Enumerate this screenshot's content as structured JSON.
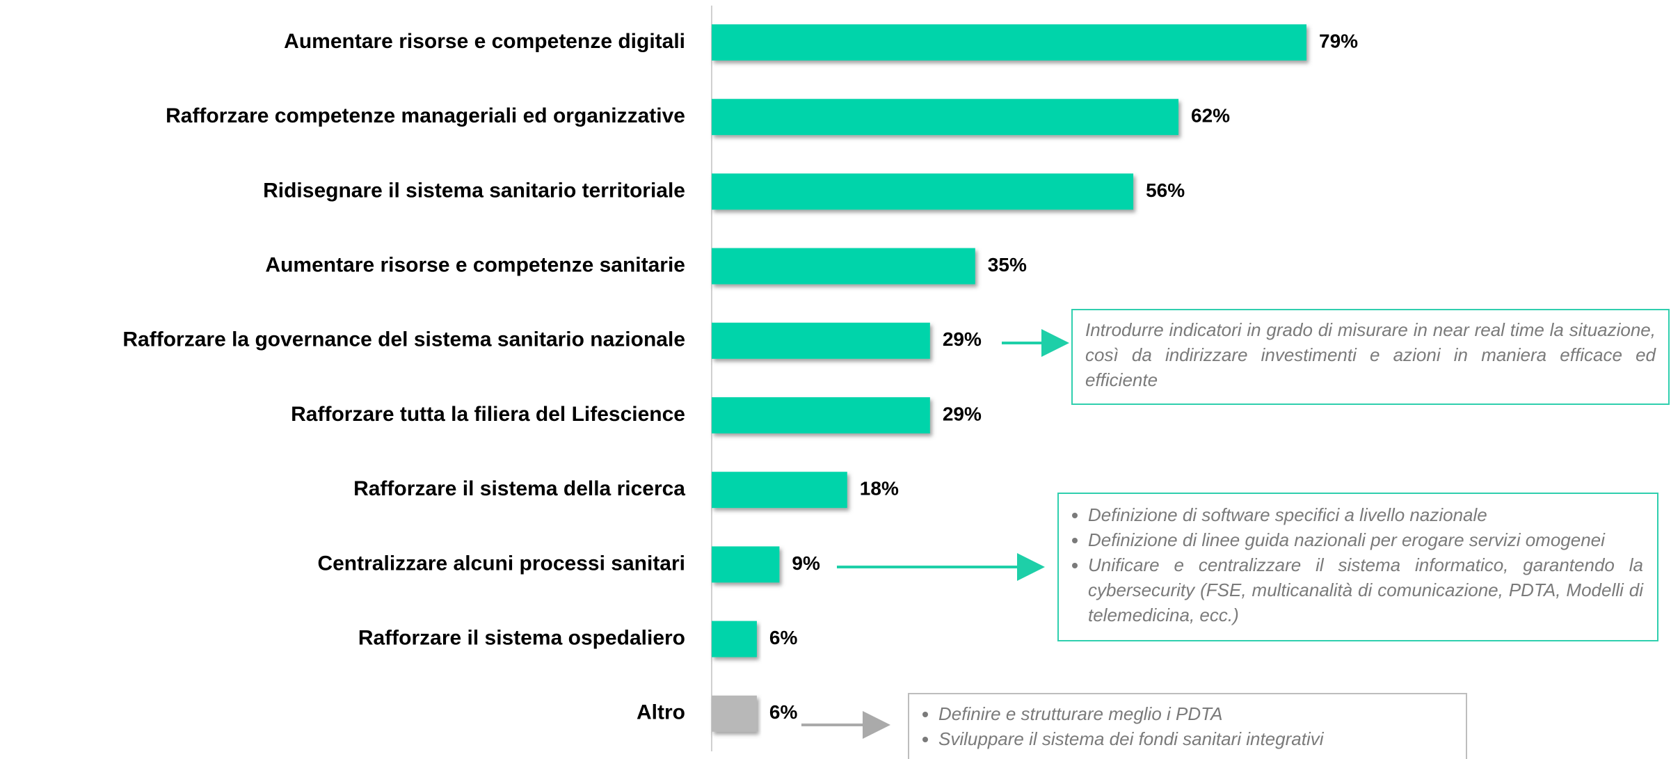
{
  "chart_data": {
    "type": "barh",
    "categories": [
      "Aumentare risorse e competenze digitali",
      "Rafforzare competenze manageriali ed organizzative",
      "Ridisegnare il sistema sanitario territoriale",
      "Aumentare risorse e competenze sanitarie",
      "Rafforzare la governance del sistema sanitario nazionale",
      "Rafforzare tutta la filiera del Lifescience",
      "Rafforzare il sistema della ricerca",
      "Centralizzare alcuni processi sanitari",
      "Rafforzare il sistema ospedaliero",
      "Altro"
    ],
    "values": [
      79,
      62,
      56,
      35,
      29,
      29,
      18,
      9,
      6,
      6
    ],
    "value_labels": [
      "79%",
      "62%",
      "56%",
      "35%",
      "29%",
      "29%",
      "18%",
      "9%",
      "6%",
      "6%"
    ],
    "colors": [
      "#00d4aa",
      "#00d4aa",
      "#00d4aa",
      "#00d4aa",
      "#00d4aa",
      "#00d4aa",
      "#00d4aa",
      "#00d4aa",
      "#00d4aa",
      "#b8b8b8"
    ],
    "annotations": [
      {
        "text": "Introdurre indicatori in grado di misurare in near real time la situazione, così da indirizzare investimenti e azioni in maniera efficace ed efficiente"
      },
      {
        "items": [
          "Definizione di software specifici a livello nazionale",
          "Definizione di linee guida nazionali per erogare servizi omogenei",
          "Unificare e centralizzare il sistema informatico, garantendo la cybersecurity (FSE, multicanalità di comunicazione, PDTA, Modelli di telemedicina, ecc.)"
        ]
      },
      {
        "items": [
          "Definire e strutturare meglio i PDTA",
          "Sviluppare il sistema dei fondi sanitari integrativi"
        ]
      }
    ]
  }
}
